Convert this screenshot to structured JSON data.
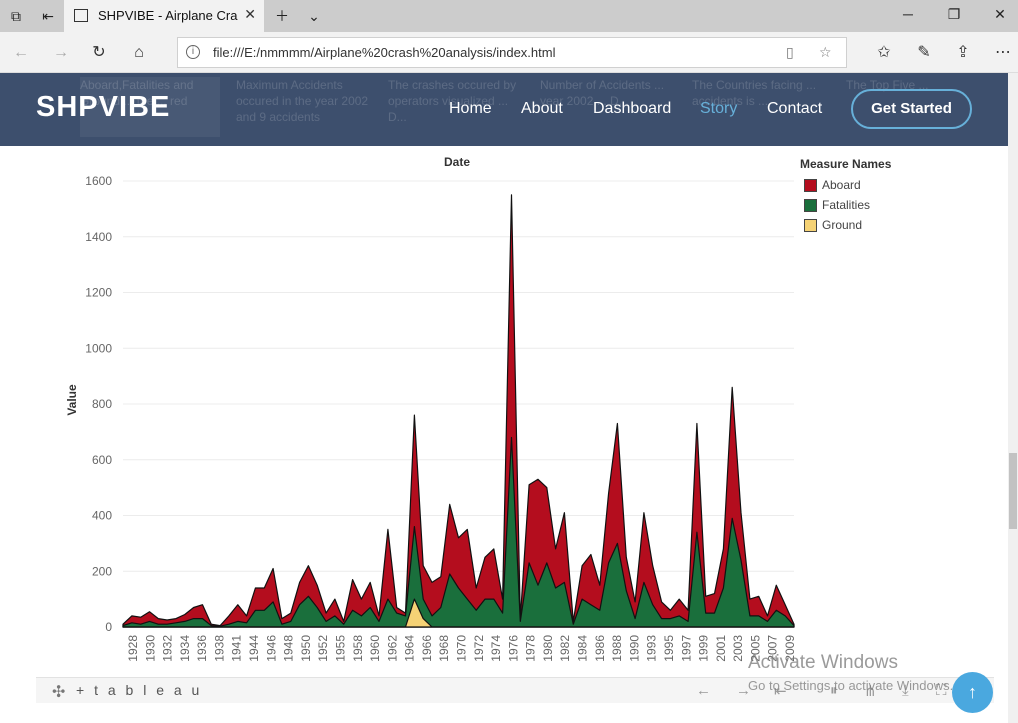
{
  "browser": {
    "tab_title": "SHPVIBE - Airplane Cras",
    "url": "file:///E:/nmmmm/Airplane%20crash%20analysis/index.html",
    "icons": [
      "tab-manager-icon",
      "back-tabs-icon",
      "page-icon",
      "close-icon",
      "plus-icon",
      "chevron-down-icon",
      "minimize-icon",
      "restore-icon",
      "window-close-icon",
      "back-icon",
      "forward-icon",
      "refresh-icon",
      "home-icon",
      "info-icon",
      "reading-view-icon",
      "star-icon",
      "favorites-icon",
      "pen-icon",
      "share-icon",
      "more-icon"
    ]
  },
  "site": {
    "logo": "SHPVIBE",
    "nav": [
      "Home",
      "About",
      "Dashboard",
      "Story",
      "Contact"
    ],
    "active_nav": "Story",
    "cta": "Get Started",
    "ghost_cards": [
      "Aboard,Fatalities and Ground ... the ... red",
      "Maximum Accidents occured in the year 2002 and 9 accidents",
      "The crashes occured by operators visualized ... D...",
      "Number of Accidents ... year 2002 ... D...",
      "The Countries facing ... accidents is ...",
      "The Top Five ..."
    ],
    "accent_color": "#67b0d9",
    "header_color": "#3d4f6d"
  },
  "chart_data": {
    "type": "area",
    "title": "Date",
    "xlabel": "",
    "ylabel": "Value",
    "ylim": [
      0,
      1600
    ],
    "yticks": [
      0,
      200,
      400,
      600,
      800,
      1000,
      1200,
      1400,
      1600
    ],
    "xticks": [
      "1928",
      "1930",
      "1932",
      "1934",
      "1936",
      "1938",
      "1941",
      "1944",
      "1946",
      "1948",
      "1950",
      "1952",
      "1955",
      "1958",
      "1960",
      "1962",
      "1964",
      "1966",
      "1968",
      "1970",
      "1972",
      "1974",
      "1976",
      "1978",
      "1980",
      "1982",
      "1984",
      "1986",
      "1988",
      "1990",
      "1993",
      "1995",
      "1997",
      "1999",
      "2001",
      "2003",
      "2005",
      "2007",
      "2009"
    ],
    "grid": true,
    "legend_title": "Measure Names",
    "legend_position": "top-right",
    "series": [
      {
        "name": "Aboard",
        "color": "#b40d1e",
        "values": [
          10,
          40,
          35,
          55,
          30,
          25,
          30,
          45,
          70,
          80,
          10,
          5,
          40,
          80,
          40,
          140,
          140,
          210,
          30,
          50,
          160,
          220,
          150,
          50,
          100,
          20,
          170,
          100,
          160,
          40,
          350,
          70,
          50,
          760,
          220,
          160,
          180,
          440,
          320,
          350,
          140,
          250,
          280,
          100,
          1550,
          30,
          510,
          530,
          500,
          280,
          410,
          20,
          220,
          260,
          150,
          480,
          730,
          250,
          90,
          410,
          220,
          90,
          60,
          100,
          60,
          730,
          110,
          120,
          280,
          860,
          410,
          100,
          110,
          40,
          150,
          80,
          10
        ]
      },
      {
        "name": "Fatalities",
        "color": "#1a6f3c",
        "values": [
          5,
          15,
          10,
          20,
          10,
          10,
          15,
          20,
          30,
          30,
          5,
          3,
          10,
          20,
          15,
          60,
          60,
          90,
          10,
          20,
          80,
          110,
          70,
          20,
          40,
          10,
          60,
          40,
          70,
          20,
          100,
          50,
          40,
          360,
          100,
          40,
          70,
          190,
          140,
          100,
          60,
          100,
          100,
          50,
          680,
          20,
          230,
          150,
          230,
          140,
          160,
          10,
          100,
          80,
          60,
          230,
          300,
          130,
          30,
          160,
          80,
          30,
          30,
          40,
          20,
          340,
          50,
          50,
          140,
          390,
          240,
          40,
          40,
          20,
          60,
          40,
          5
        ]
      },
      {
        "name": "Ground",
        "color": "#f5d275",
        "values": [
          0,
          0,
          0,
          0,
          0,
          0,
          0,
          0,
          0,
          0,
          0,
          0,
          0,
          0,
          0,
          0,
          0,
          0,
          0,
          0,
          0,
          0,
          0,
          0,
          0,
          0,
          0,
          0,
          0,
          0,
          0,
          0,
          0,
          100,
          30,
          0,
          0,
          0,
          0,
          0,
          0,
          0,
          0,
          0,
          0,
          0,
          0,
          0,
          0,
          0,
          0,
          0,
          0,
          0,
          0,
          0,
          0,
          0,
          0,
          0,
          0,
          0,
          0,
          0,
          0,
          0,
          0,
          0,
          0,
          0,
          0,
          0,
          0,
          0,
          0,
          0,
          0
        ]
      }
    ]
  },
  "tableau": {
    "logo": "+ t a b l e a u",
    "icons": [
      "tableau-logo-icon",
      "undo-icon",
      "redo-icon",
      "revert-icon",
      "back-icon",
      "pause-icon",
      "share-icon",
      "download-icon",
      "fullscreen-icon"
    ]
  },
  "watermark": {
    "title": "Activate Windows",
    "subtitle": "Go to Settings to activate Windows."
  }
}
